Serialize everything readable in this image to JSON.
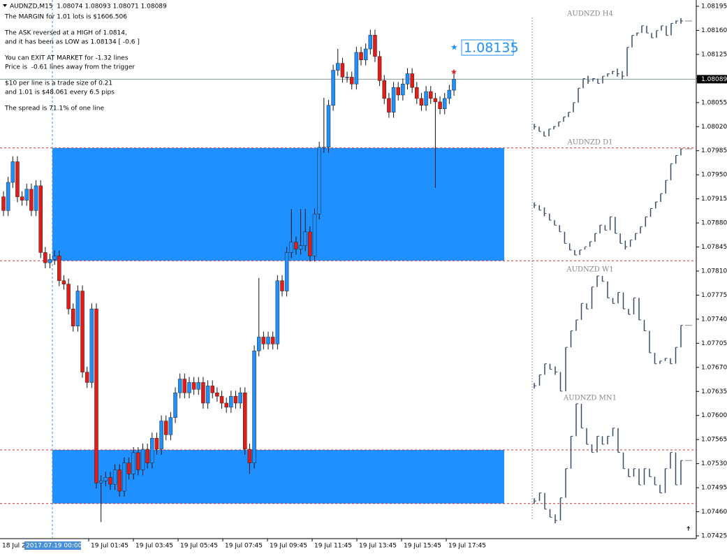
{
  "header": "AUDNZD,M15  1.08074 1.08093 1.08071 1.08089",
  "info_lines": [
    "The MARGIN for 1.01 lots is $1606.506",
    "The ASK reversed at a HIGH of 1.0814,",
    "and it has been as LOW as 1.08134 [ -0.6 ]",
    "You can EXIT AT MARKET for -1.32 lines",
    "Price is  -0.61 lines away from the trigger",
    "$10 per line is a trade size of 0.21",
    "and 1.01 is $48.061 every 6.5 pips",
    "The spread is 71.1% of one line"
  ],
  "chart_data": {
    "type": "candlestick",
    "open": [
      1.07918,
      1.07898,
      1.07939,
      1.07969,
      1.07918,
      1.07913,
      1.07929,
      1.07898,
      1.07934,
      1.07837,
      1.07822,
      1.07827,
      1.07832,
      1.07796,
      1.07791,
      1.07755,
      1.0773,
      1.07781,
      1.07663,
      1.07648,
      1.07755,
      1.07502,
      1.07505,
      1.0751,
      1.075,
      1.07521,
      1.0749,
      1.07531,
      1.07515,
      1.07546,
      1.07521,
      1.07551,
      1.07531,
      1.07567,
      1.07551,
      1.07592,
      1.07572,
      1.07597,
      1.07633,
      1.07653,
      1.07633,
      1.07648,
      1.07638,
      1.07648,
      1.07618,
      1.07643,
      1.07633,
      1.07628,
      1.07618,
      1.07612,
      1.07628,
      1.07618,
      1.07633,
      1.07551,
      1.07531,
      1.07694,
      1.07714,
      1.07704,
      1.07714,
      1.07704,
      1.07796,
      1.07781,
      1.07837,
      1.07852,
      1.07842,
      1.07847,
      1.07867,
      1.07832,
      1.07893,
      1.0799,
      1.0799,
      1.08051,
      1.08102,
      1.08112,
      1.08092,
      1.08092,
      1.08082,
      1.08128,
      1.08117,
      1.08133,
      1.08153,
      1.08122,
      1.08087,
      1.08061,
      1.08041,
      1.08077,
      1.08066,
      1.08082,
      1.08097,
      1.08077,
      1.08061,
      1.08051,
      1.08071,
      1.08061,
      1.08056,
      1.08046,
      1.08061,
      1.08073
    ],
    "high": [
      1.07926,
      1.07947,
      1.07977,
      1.07977,
      1.07926,
      1.07937,
      1.07937,
      1.07942,
      1.07942,
      1.07845,
      1.07835,
      1.0784,
      1.0784,
      1.07804,
      1.07799,
      1.07763,
      1.07789,
      1.07789,
      1.07671,
      1.07763,
      1.07763,
      1.07513,
      1.07518,
      1.07518,
      1.07529,
      1.07529,
      1.07539,
      1.07539,
      1.07554,
      1.07554,
      1.07559,
      1.07559,
      1.07575,
      1.07575,
      1.076,
      1.076,
      1.07605,
      1.07641,
      1.07661,
      1.07661,
      1.07656,
      1.07656,
      1.07656,
      1.07656,
      1.07651,
      1.07651,
      1.07641,
      1.07636,
      1.07626,
      1.07636,
      1.07636,
      1.07641,
      1.07641,
      1.07559,
      1.07702,
      1.078,
      1.07722,
      1.07722,
      1.07722,
      1.07804,
      1.07804,
      1.07845,
      1.079,
      1.0786,
      1.079,
      1.079,
      1.07875,
      1.07901,
      1.07998,
      1.08062,
      1.08059,
      1.0811,
      1.08133,
      1.0812,
      1.081,
      1.081,
      1.08136,
      1.08136,
      1.08141,
      1.08161,
      1.08161,
      1.0813,
      1.08095,
      1.08069,
      1.08085,
      1.08085,
      1.0809,
      1.08105,
      1.08105,
      1.08085,
      1.08069,
      1.08079,
      1.08079,
      1.08069,
      1.08064,
      1.08069,
      1.08081,
      1.08097
    ],
    "low": [
      1.0789,
      1.0789,
      1.07931,
      1.0791,
      1.07905,
      1.07905,
      1.0789,
      1.0789,
      1.07829,
      1.07814,
      1.07814,
      1.07819,
      1.07788,
      1.07783,
      1.07747,
      1.07722,
      1.07722,
      1.07655,
      1.0764,
      1.0764,
      1.07494,
      1.07445,
      1.07497,
      1.07492,
      1.07492,
      1.07482,
      1.07482,
      1.07507,
      1.07507,
      1.07513,
      1.07513,
      1.07523,
      1.07523,
      1.07543,
      1.07543,
      1.07564,
      1.07564,
      1.07589,
      1.07625,
      1.07625,
      1.07625,
      1.0763,
      1.0763,
      1.0761,
      1.0761,
      1.07625,
      1.0762,
      1.0761,
      1.07604,
      1.07604,
      1.0761,
      1.0761,
      1.07543,
      1.07515,
      1.07523,
      1.07686,
      1.07696,
      1.07696,
      1.07696,
      1.07696,
      1.07773,
      1.07773,
      1.07829,
      1.07834,
      1.07834,
      1.07839,
      1.07824,
      1.07824,
      1.07885,
      1.07982,
      1.07982,
      1.08043,
      1.08094,
      1.08084,
      1.08084,
      1.08074,
      1.08074,
      1.08109,
      1.08109,
      1.08125,
      1.08114,
      1.08079,
      1.08053,
      1.08033,
      1.08033,
      1.08058,
      1.08058,
      1.08074,
      1.08069,
      1.08053,
      1.08043,
      1.08043,
      1.08053,
      1.07931,
      1.08038,
      1.08038,
      1.08053,
      1.08065
    ],
    "close": [
      1.07898,
      1.07939,
      1.07969,
      1.07918,
      1.07913,
      1.07929,
      1.07898,
      1.07934,
      1.07837,
      1.07822,
      1.07827,
      1.07832,
      1.07796,
      1.07791,
      1.07755,
      1.0773,
      1.07781,
      1.07663,
      1.07648,
      1.07755,
      1.07502,
      1.07505,
      1.0751,
      1.075,
      1.07521,
      1.0749,
      1.07531,
      1.07515,
      1.07546,
      1.07521,
      1.07551,
      1.07531,
      1.07567,
      1.07551,
      1.07592,
      1.07572,
      1.07597,
      1.07633,
      1.07653,
      1.07633,
      1.07648,
      1.07638,
      1.07648,
      1.07618,
      1.07643,
      1.07633,
      1.07628,
      1.07618,
      1.07612,
      1.07628,
      1.07618,
      1.07633,
      1.07551,
      1.07531,
      1.07694,
      1.07714,
      1.07704,
      1.07714,
      1.07704,
      1.07796,
      1.07781,
      1.07837,
      1.07852,
      1.07842,
      1.07847,
      1.07867,
      1.07832,
      1.07893,
      1.0799,
      1.0799,
      1.08051,
      1.08102,
      1.08112,
      1.08092,
      1.08092,
      1.08082,
      1.08128,
      1.08117,
      1.08133,
      1.08153,
      1.08122,
      1.08087,
      1.08061,
      1.08041,
      1.08077,
      1.08066,
      1.08082,
      1.08097,
      1.08077,
      1.08061,
      1.08051,
      1.08071,
      1.08061,
      1.08056,
      1.08046,
      1.08061,
      1.08073,
      1.08089
    ],
    "ylim": [
      1.07425,
      1.08195
    ],
    "yticks": [
      1.08195,
      {
        "value": 1.0816,
        "label": "1.08160"
      },
      1.08125,
      {
        "value": 1.0809,
        "label": "1.08090"
      },
      1.08055,
      {
        "value": 1.0802,
        "label": "1.08020"
      },
      1.07985,
      {
        "value": 1.0795,
        "label": "1.07950"
      },
      1.07915,
      {
        "value": 1.0788,
        "label": "1.07880"
      },
      1.07845,
      {
        "value": 1.0781,
        "label": "1.07810"
      },
      1.07775,
      {
        "value": 1.0774,
        "label": "1.07740"
      },
      1.07705,
      {
        "value": 1.0767,
        "label": "1.07670"
      },
      1.07635,
      {
        "value": 1.076,
        "label": "1.07600"
      },
      1.07565,
      {
        "value": 1.0753,
        "label": "1.07530"
      },
      1.07495,
      {
        "value": 1.0746,
        "label": "1.07460"
      },
      1.07425
    ],
    "current_price": 1.08089,
    "target_price": 1.08135,
    "zones": [
      [
        1.07989,
        1.07825
      ],
      [
        1.0755,
        1.07472
      ]
    ],
    "time_labels": [
      "18 Jul 2",
      "2017.07.19 00:00",
      "19 Jul 01:45",
      "19 Jul 03:45",
      "19 Jul 05:45",
      "19 Jul 07:45",
      "19 Jul 09:45",
      "19 Jul 11:45",
      "19 Jul 13:45",
      "19 Jul 15:45",
      "19 Jul 17:45"
    ],
    "up_color": "#1e90ff",
    "down_color": "#e41b17",
    "zone_color": "#1e90ff"
  },
  "mini_charts": [
    {
      "title": "AUDNZD H4",
      "values": [
        1.077,
        1.0768,
        1.0766,
        1.0769,
        1.077,
        1.0772,
        1.0774,
        1.0776,
        1.078,
        1.0786,
        1.079,
        1.0789,
        1.079,
        1.0788,
        1.0791,
        1.0792,
        1.0793,
        1.0792,
        1.0791,
        1.0803,
        1.0808,
        1.0809,
        1.0812,
        1.0809,
        1.0807,
        1.081,
        1.0812,
        1.0808,
        1.0813,
        1.0814,
        1.0814
      ]
    },
    {
      "title": "AUDNZD D1",
      "values": [
        1.0775,
        1.0772,
        1.077,
        1.0766,
        1.0763,
        1.0759,
        1.0752,
        1.0748,
        1.0745,
        1.0748,
        1.075,
        1.0753,
        1.0758,
        1.0763,
        1.076,
        1.0768,
        1.0758,
        1.0752,
        1.075,
        1.0754,
        1.0758,
        1.0762,
        1.0768,
        1.0773,
        1.0777,
        1.0782,
        1.079,
        1.08,
        1.0805,
        1.0809
      ]
    },
    {
      "title": "AUDNZD W1",
      "values": [
        1.05,
        1.052,
        1.054,
        1.053,
        1.0525,
        1.049,
        1.057,
        1.06,
        1.062,
        1.065,
        1.064,
        1.068,
        1.07,
        1.069,
        1.066,
        1.065,
        1.067,
        1.064,
        1.063,
        1.066,
        1.062,
        1.06,
        1.056,
        1.054,
        1.0545,
        1.055,
        1.054,
        1.057,
        1.061
      ]
    },
    {
      "title": "AUDNZD MN1",
      "values": [
        1.05,
        1.055,
        1.045,
        1.04,
        1.038,
        1.052,
        1.07,
        1.09,
        1.11,
        1.095,
        1.085,
        1.08,
        1.09,
        1.085,
        1.09,
        1.095,
        1.08,
        1.07,
        1.065,
        1.07,
        1.06,
        1.07,
        1.065,
        1.06,
        1.055,
        1.07,
        1.08,
        1.06,
        1.075
      ]
    }
  ]
}
